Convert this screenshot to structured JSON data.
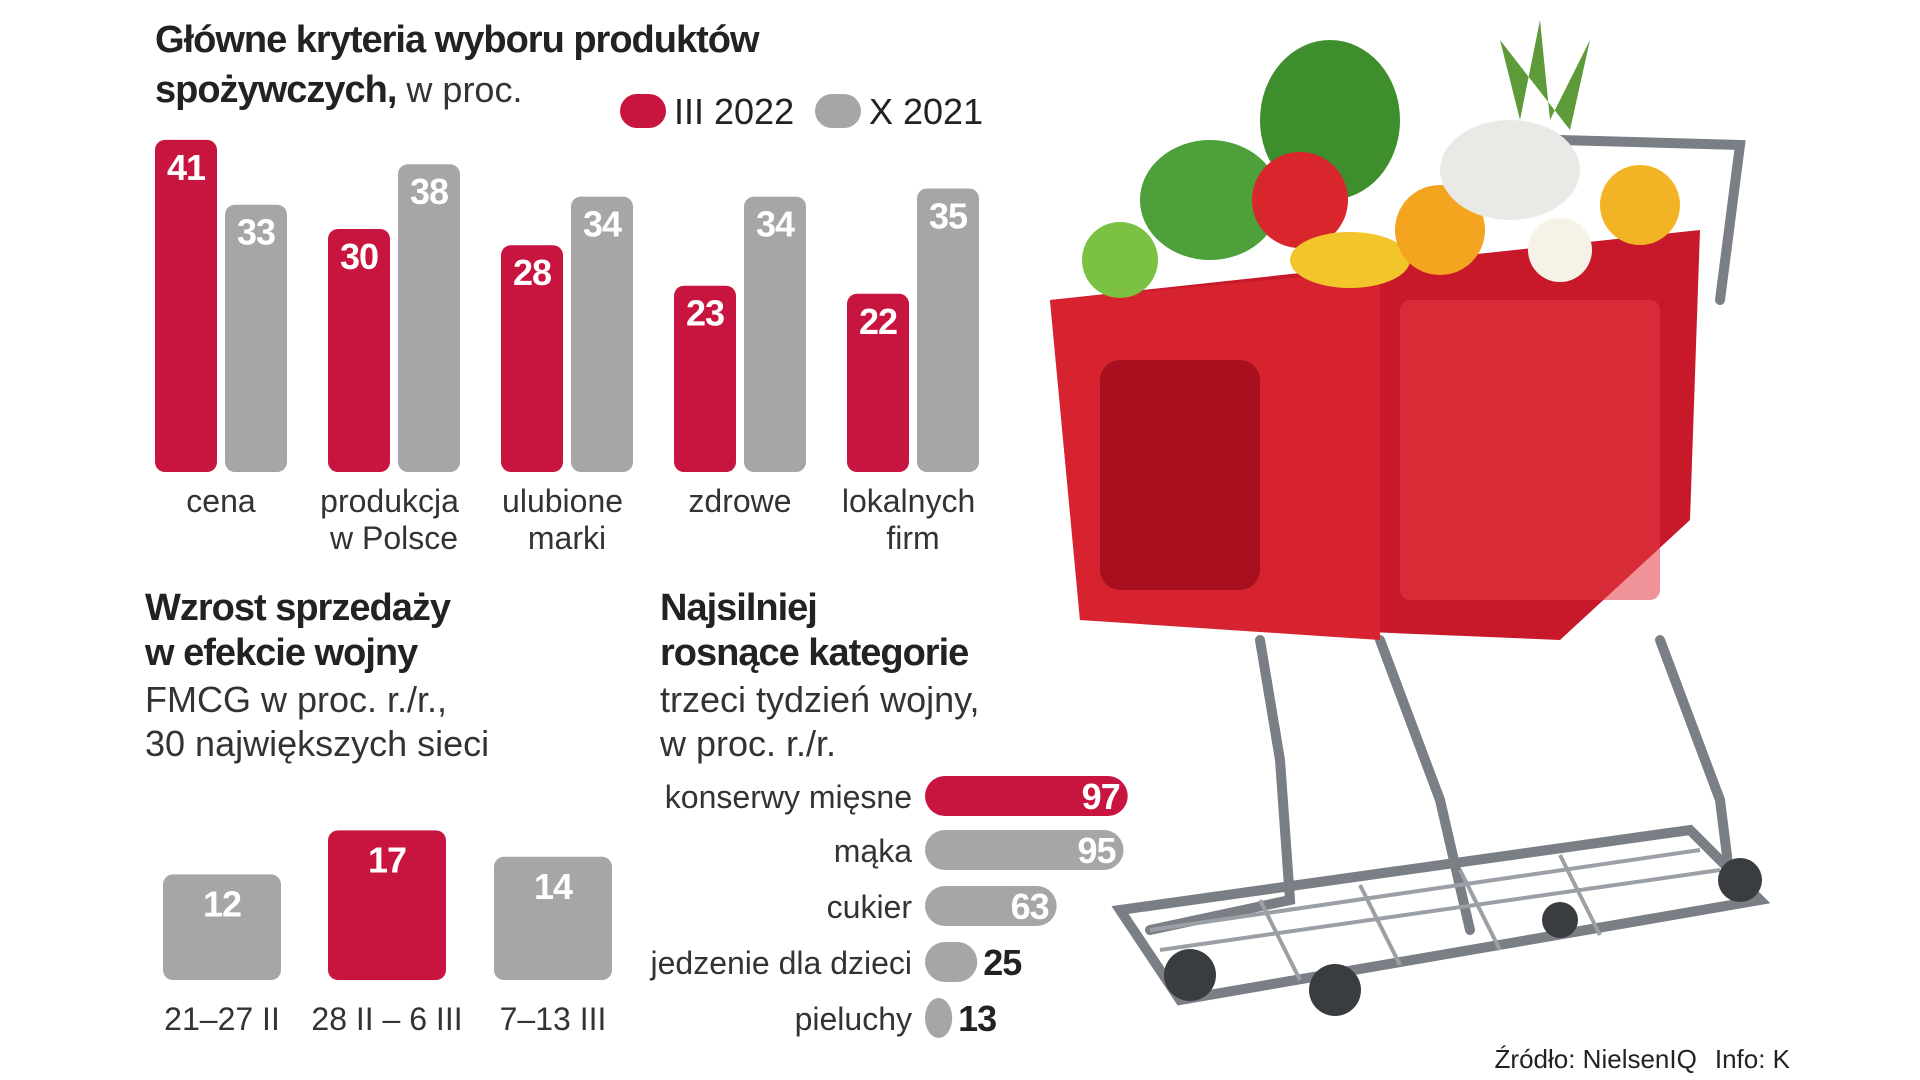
{
  "chart_data": [
    {
      "type": "bar",
      "title": [
        "Główne kryteria wyboru produktów",
        "spożywczych,"
      ],
      "subtitle": "w proc.",
      "categories": [
        "cena",
        "produkcja w Polsce",
        "ulubione marki",
        "zdrowe",
        "lokalnych firm"
      ],
      "series": [
        {
          "name": "III 2022",
          "color": "#c8153f",
          "values": [
            41,
            30,
            28,
            23,
            22
          ]
        },
        {
          "name": "X 2021",
          "color": "#a6a6a6",
          "values": [
            33,
            38,
            34,
            34,
            35
          ]
        }
      ]
    },
    {
      "type": "bar",
      "title": [
        "Wzrost sprzedaży",
        "w efekcie wojny"
      ],
      "subtitle": [
        "FMCG w proc. r./r.,",
        "30 największych sieci"
      ],
      "categories": [
        "21–27 II",
        "28 II – 6 III",
        "7–13 III"
      ],
      "values": [
        12,
        17,
        14
      ],
      "colors": [
        "#a6a6a6",
        "#c8153f",
        "#a6a6a6"
      ]
    },
    {
      "type": "hbar",
      "title": [
        "Najsilniej",
        "rosnące kategorie"
      ],
      "subtitle": [
        "trzeci tydzień wojny,",
        "w proc. r./r."
      ],
      "categories": [
        "konserwy mięsne",
        "mąka",
        "cukier",
        "jedzenie dla dzieci",
        "pieluchy"
      ],
      "values": [
        97,
        95,
        63,
        25,
        13
      ],
      "colors": [
        "#c8153f",
        "#a6a6a6",
        "#a6a6a6",
        "#a6a6a6",
        "#a6a6a6"
      ]
    }
  ],
  "source": "Źródło: NielsenIQ",
  "credit": "Info: K"
}
